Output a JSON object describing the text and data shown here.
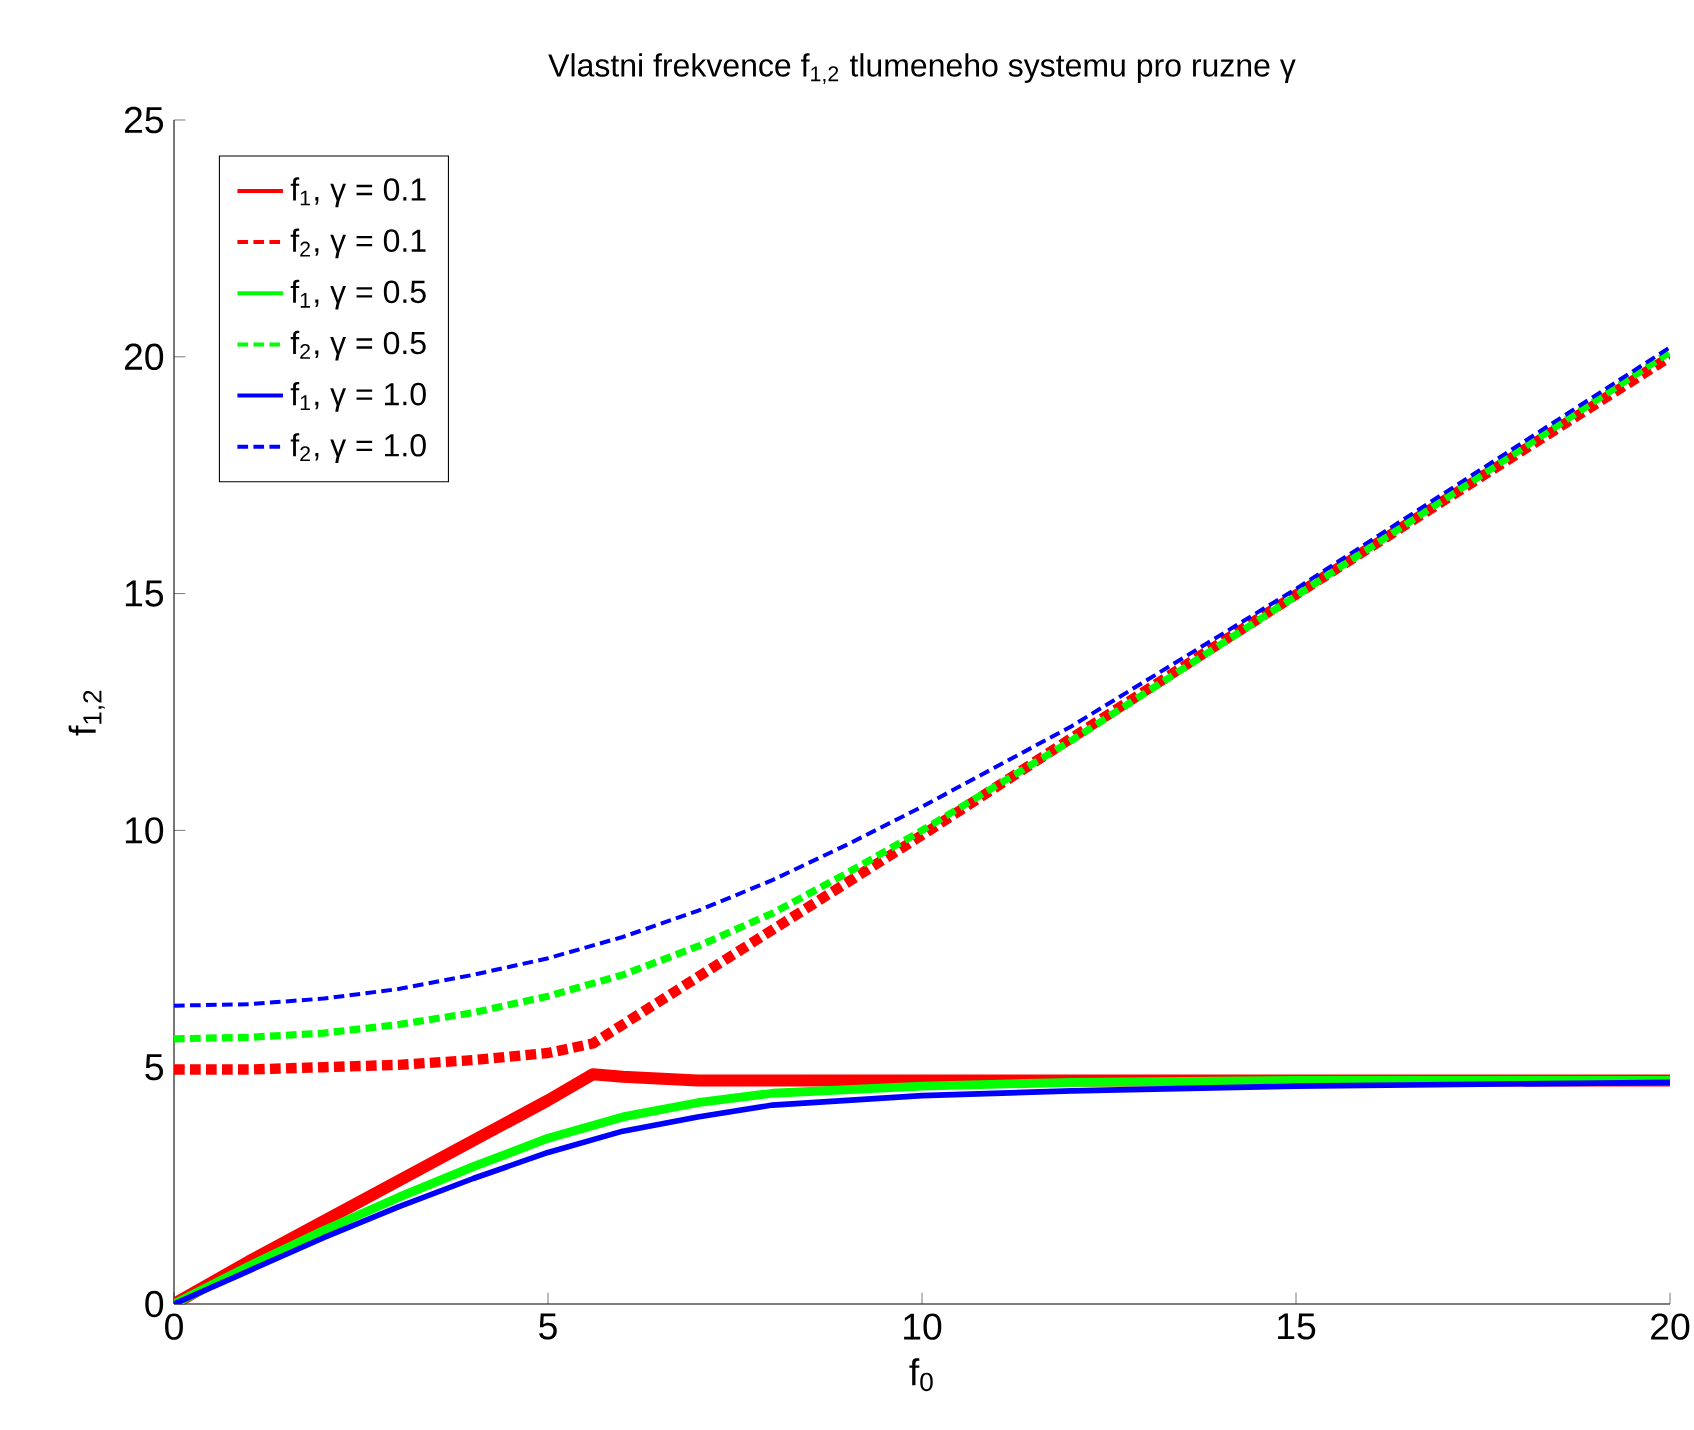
{
  "chart_data": {
    "type": "line",
    "title": "Vlastni frekvence f$_{1,2}$ tlumeneho systemu pro ruzne γ",
    "xlabel": "f$_{0}$",
    "ylabel": "f$_{1,2}$",
    "xlim": [
      0,
      20
    ],
    "ylim": [
      0,
      25
    ],
    "xticks": [
      0,
      5,
      10,
      15,
      20
    ],
    "yticks": [
      0,
      5,
      10,
      15,
      20,
      25
    ],
    "grid": false,
    "legend": "top left",
    "marker": "none",
    "series": [
      {
        "name": "f$_{1}$, γ = 0.1",
        "color": "#ff0000",
        "line_style": "solid",
        "x": [
          0,
          1,
          2,
          3,
          4,
          5,
          5.6,
          6,
          7,
          8,
          10,
          15,
          20
        ],
        "values": [
          0,
          0.9,
          1.75,
          2.6,
          3.45,
          4.3,
          4.85,
          4.8,
          4.72,
          4.72,
          4.72,
          4.72,
          4.72
        ]
      },
      {
        "name": "f$_{2}$, γ = 0.1",
        "color": "#ff0000",
        "line_style": "dashed",
        "x": [
          0,
          1,
          2,
          3,
          4,
          5,
          5.6,
          6,
          7,
          8,
          9,
          10,
          12,
          15,
          20
        ],
        "values": [
          4.95,
          4.95,
          5.0,
          5.05,
          5.15,
          5.3,
          5.5,
          5.9,
          6.9,
          7.9,
          8.9,
          9.9,
          11.95,
          14.98,
          20.0
        ]
      },
      {
        "name": "f$_{1}$, γ = 0.5",
        "color": "#00ff00",
        "line_style": "solid",
        "x": [
          0,
          1,
          2,
          3,
          4,
          5,
          6,
          7,
          8,
          10,
          12,
          15,
          20
        ],
        "values": [
          0,
          0.8,
          1.55,
          2.25,
          2.9,
          3.5,
          3.95,
          4.25,
          4.45,
          4.6,
          4.68,
          4.72,
          4.72
        ]
      },
      {
        "name": "f$_{2}$, γ = 0.5",
        "color": "#00ff00",
        "line_style": "dashed",
        "x": [
          0,
          1,
          2,
          3,
          4,
          5,
          6,
          7,
          8,
          9,
          10,
          12,
          15,
          20
        ],
        "values": [
          5.6,
          5.63,
          5.72,
          5.9,
          6.15,
          6.5,
          6.95,
          7.55,
          8.25,
          9.1,
          10.0,
          11.9,
          14.95,
          20.1
        ]
      },
      {
        "name": "f$_{1}$, γ = 1.0",
        "color": "#0000ff",
        "line_style": "solid",
        "x": [
          0,
          1,
          2,
          3,
          4,
          5,
          6,
          7,
          8,
          10,
          12,
          15,
          20
        ],
        "values": [
          0,
          0.7,
          1.4,
          2.05,
          2.65,
          3.2,
          3.65,
          3.95,
          4.2,
          4.4,
          4.5,
          4.6,
          4.68
        ]
      },
      {
        "name": "f$_{2}$, γ = 1.0",
        "color": "#0000ff",
        "line_style": "dashed",
        "x": [
          0,
          1,
          2,
          3,
          4,
          5,
          6,
          7,
          8,
          9,
          10,
          12,
          15,
          20
        ],
        "values": [
          6.3,
          6.33,
          6.45,
          6.65,
          6.95,
          7.3,
          7.75,
          8.3,
          8.95,
          9.7,
          10.5,
          12.2,
          15.1,
          20.2
        ]
      }
    ]
  }
}
